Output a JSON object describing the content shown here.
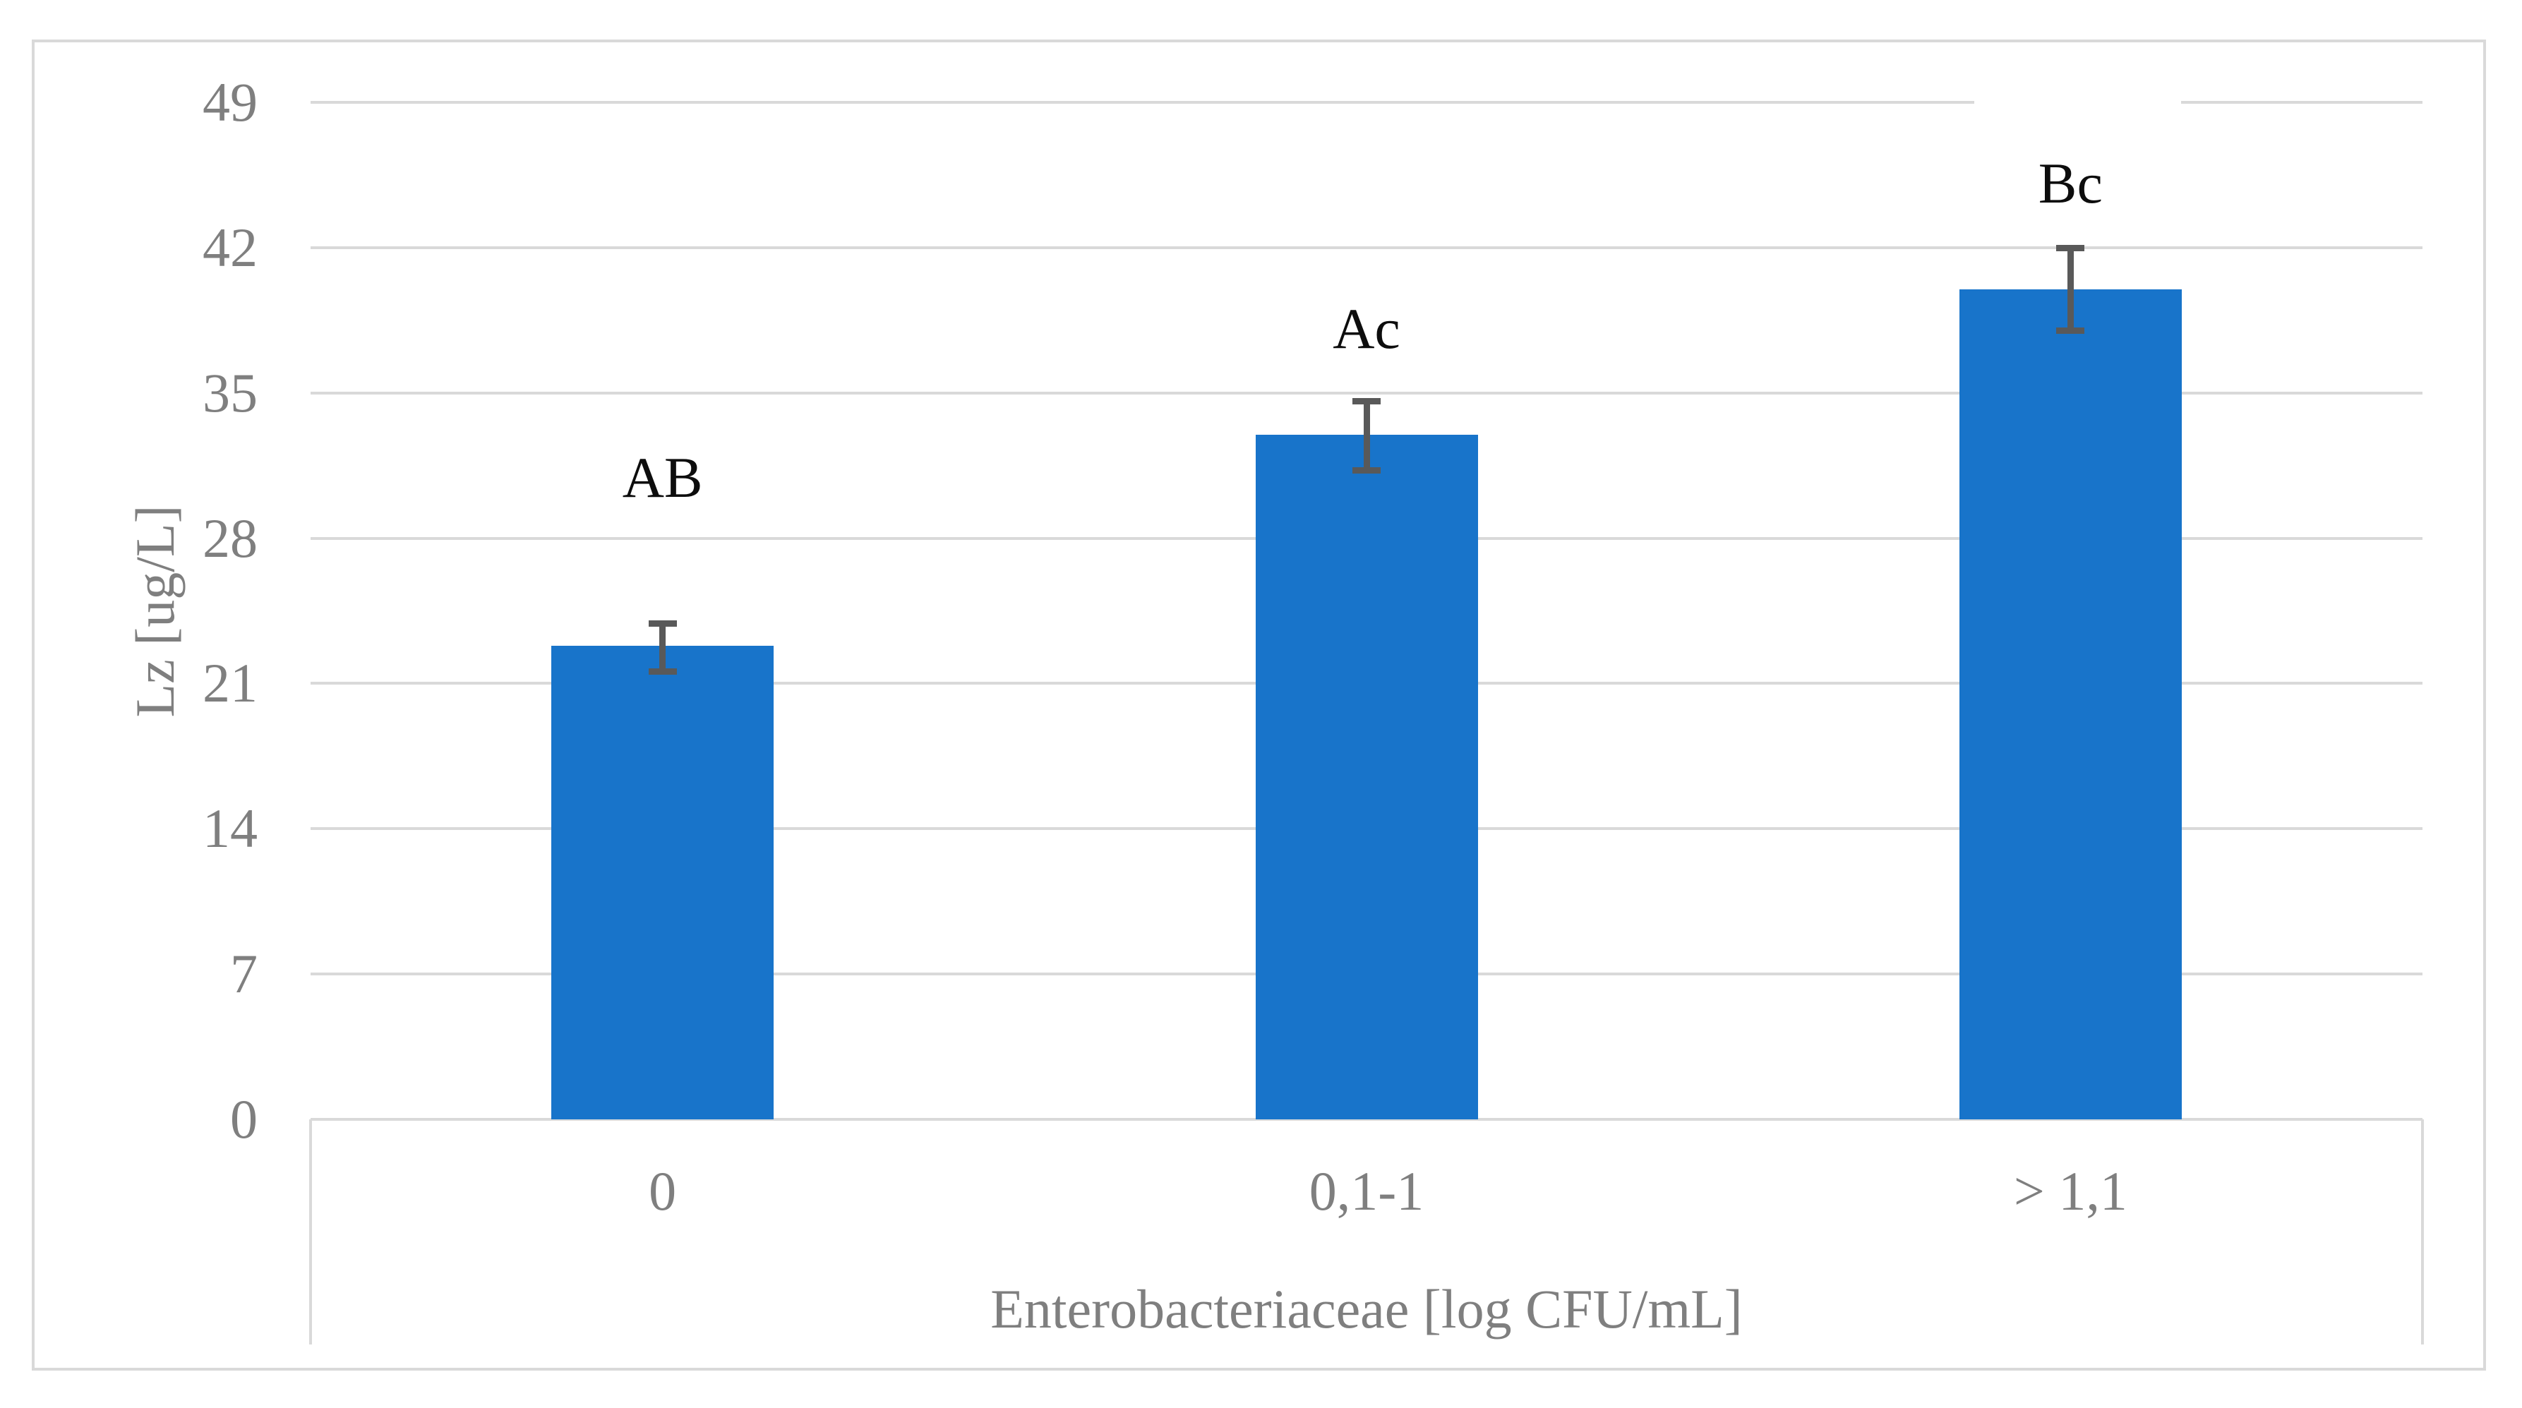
{
  "chart_data": {
    "type": "bar",
    "title": "",
    "categories": [
      "0",
      "0,1-1",
      "> 1,1"
    ],
    "values": [
      22.8,
      33,
      40
    ],
    "error_plus": [
      1.1,
      1.6,
      2.0
    ],
    "error_minus": [
      1.2,
      1.7,
      2.0
    ],
    "bar_labels": [
      "AB",
      "Ac",
      "Bc"
    ],
    "bar_label_y": [
      30.9,
      38.1,
      45.1
    ],
    "xlabel": "Enterobacteriaceae [log CFU/mL]",
    "ylabel": "Lz [ug/L]",
    "yticks": [
      0,
      7,
      14,
      21,
      28,
      35,
      42,
      49
    ],
    "ylim": [
      0,
      49
    ],
    "grid": "horizontal",
    "legend": "none",
    "colors": {
      "bar": "#1874CA",
      "gridline": "#D9D9D9",
      "error_bar": "#595959",
      "axis_text": "#7F7F7F",
      "bar_label_text": "#0D0D0D",
      "chart_border": "#D9D9D9",
      "background": "#FFFFFF"
    }
  }
}
